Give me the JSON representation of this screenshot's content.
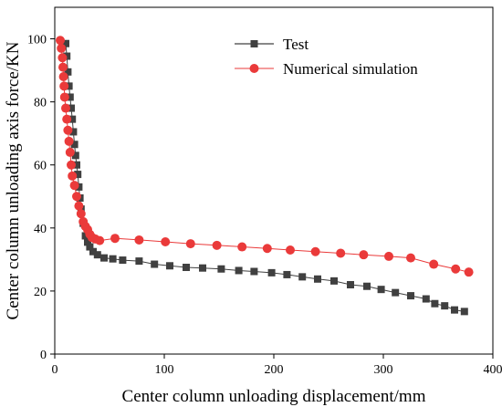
{
  "chart_data": {
    "type": "line",
    "xlabel": "Center column unloading displacement/mm",
    "ylabel": "Center column unloading axis force/KN",
    "xlim": [
      0,
      400
    ],
    "ylim": [
      0,
      110
    ],
    "xticks": [
      0,
      100,
      200,
      300,
      400
    ],
    "yticks": [
      0,
      20,
      40,
      60,
      80,
      100
    ],
    "grid": false,
    "legend_position": "top-right",
    "series": [
      {
        "name": "Test",
        "color": "#404040",
        "marker": "square",
        "x": [
          10,
          11,
          12,
          13,
          14,
          15,
          16,
          17,
          18,
          19,
          20,
          21,
          22,
          23,
          24,
          26,
          28,
          30,
          32,
          35,
          39,
          45,
          53,
          62,
          77,
          91,
          105,
          120,
          135,
          152,
          168,
          182,
          198,
          212,
          226,
          240,
          255,
          270,
          285,
          298,
          311,
          325,
          339,
          347,
          356,
          365,
          374
        ],
        "y": [
          98.5,
          94.5,
          89.5,
          85,
          81.5,
          78,
          74.5,
          70.5,
          66.5,
          63,
          60,
          57,
          53,
          49.5,
          46,
          41.5,
          37.5,
          35.5,
          34,
          32.5,
          31.5,
          30.5,
          30.2,
          29.8,
          29.5,
          28.5,
          28,
          27.5,
          27.3,
          27,
          26.5,
          26.2,
          25.8,
          25.2,
          24.5,
          23.8,
          23.2,
          22,
          21.5,
          20.5,
          19.5,
          18.5,
          17.5,
          16,
          15.3,
          14,
          13.5
        ]
      },
      {
        "name": "Numerical simulation",
        "color": "#ea3a3a",
        "marker": "circle",
        "x": [
          5,
          6,
          7,
          7.5,
          8,
          8.5,
          9,
          10,
          11,
          12,
          13,
          14,
          15,
          16,
          18,
          20,
          22,
          24,
          26,
          28,
          30,
          32,
          34,
          37,
          41,
          55,
          77,
          101,
          124,
          148,
          171,
          194,
          215,
          238,
          261,
          282,
          305,
          325,
          346,
          366,
          378
        ],
        "y": [
          99.5,
          97,
          94,
          91,
          88,
          85,
          81.5,
          78,
          74.5,
          71,
          67.5,
          64,
          60,
          56.5,
          53.5,
          50,
          47,
          44.5,
          42,
          40.5,
          39.5,
          38,
          37,
          36.5,
          36,
          36.7,
          36.2,
          35.6,
          35,
          34.5,
          34,
          33.5,
          33,
          32.5,
          32,
          31.5,
          31,
          30.5,
          28.5,
          27,
          26
        ]
      }
    ]
  }
}
